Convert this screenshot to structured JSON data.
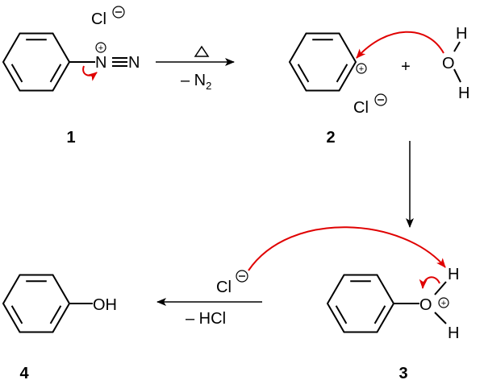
{
  "compounds": {
    "c1": {
      "number": "1",
      "n_plus": "N",
      "n_terminal": "N",
      "counterion": "Cl"
    },
    "c2": {
      "number": "2",
      "plus_sign": "+",
      "water_o": "O",
      "water_h1": "H",
      "water_h2": "H",
      "counterion": "Cl"
    },
    "c3": {
      "number": "3",
      "o": "O",
      "h1": "H",
      "h2": "H"
    },
    "c4": {
      "number": "4",
      "oh": "OH"
    }
  },
  "arrows": {
    "step1": {
      "below": "– N",
      "below_sub": "2"
    },
    "step3": {
      "above": "Cl",
      "below": "– HCl"
    }
  },
  "charges": {
    "plus": "+",
    "minus": "−"
  },
  "colors": {
    "electron_arrow": "#e00000",
    "bonds": "#000000"
  }
}
